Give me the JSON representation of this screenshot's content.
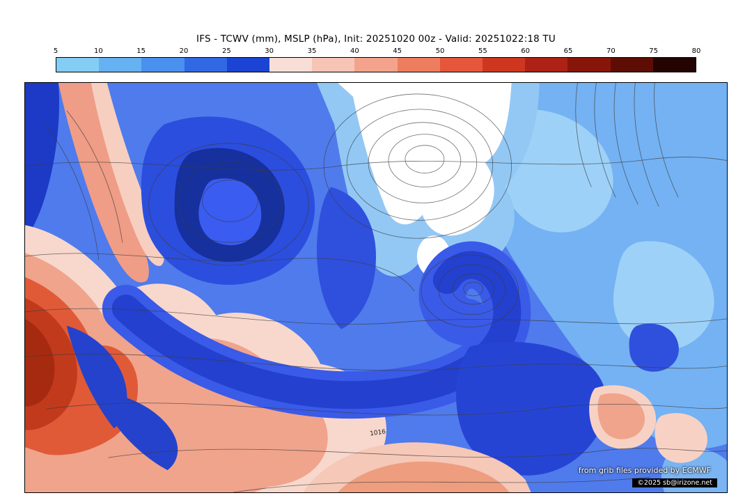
{
  "header": {
    "title": "IFS - TCWV (mm), MSLP (hPa), Init: 20251020 00z - Valid: 20251022:18 TU"
  },
  "colorbar": {
    "ticks": [
      "5",
      "10",
      "15",
      "20",
      "25",
      "30",
      "35",
      "40",
      "45",
      "50",
      "55",
      "60",
      "65",
      "70",
      "75",
      "80"
    ],
    "segment_colors": [
      "#84cdf4",
      "#65b1f2",
      "#4a90ee",
      "#3168e4",
      "#1b44d4",
      "#f8ded6",
      "#f6c5b6",
      "#f3a38c",
      "#ee7d60",
      "#e5563a",
      "#cf3620",
      "#ad2214",
      "#88150a",
      "#5e0d04",
      "#230400"
    ]
  },
  "map": {
    "contour_label": "1016",
    "credit_line": "from grib files provided by ECMWF",
    "copyright": "©2025 sb@irizone.net"
  },
  "chart_data": {
    "type": "heatmap",
    "title": "IFS - TCWV (mm), MSLP (hPa), Init: 20251020 00z - Valid: 20251022:18 TU",
    "model": "IFS",
    "shaded_field": "TCWV (mm)",
    "contour_field": "MSLP (hPa)",
    "init_time": "20251020 00z",
    "valid_time": "20251022:18 TU",
    "region": "North Atlantic and Europe",
    "legend_position": "top",
    "colorbar": {
      "units": "mm",
      "ticks": [
        5,
        10,
        15,
        20,
        25,
        30,
        35,
        40,
        45,
        50,
        55,
        60,
        65,
        70,
        75,
        80
      ],
      "colors": [
        "#84cdf4",
        "#65b1f2",
        "#4a90ee",
        "#3168e4",
        "#1b44d4",
        "#f8ded6",
        "#f6c5b6",
        "#f3a38c",
        "#ee7d60",
        "#e5563a",
        "#cf3620",
        "#ad2214",
        "#88150a",
        "#5e0d04",
        "#230400"
      ]
    },
    "visible_contour_labels": [
      "1016"
    ],
    "qualitative_features": [
      {
        "area": "subtropical North Atlantic (lower left)",
        "tcwv_mm": "35-60",
        "note": "broad moist plume, darkest red core near left edge"
      },
      {
        "area": "Iceland / Denmark Strait (upper center)",
        "tcwv_mm": "< 5",
        "note": "dry region shown white with tightly packed MSLP contours"
      },
      {
        "area": "central Atlantic cyclonic swirl",
        "tcwv_mm": "25-30",
        "note": "dark blue moisture band spiraling into low west of the British Isles"
      },
      {
        "area": "Arctic / Scandinavia (upper right)",
        "tcwv_mm": "5-15",
        "note": "light blue dry air"
      },
      {
        "area": "southern Europe / Mediterranean (lower right)",
        "tcwv_mm": "25-40",
        "note": "dark blue with salmon 35-45 mm patches"
      },
      {
        "area": "southern boundary band",
        "tcwv_mm": "30-45",
        "note": "pink/salmon band along bottom edge crossed by the 1016 hPa isobar"
      }
    ],
    "credits": [
      "from grib files provided by ECMWF",
      "©2025 sb@irizone.net"
    ]
  }
}
